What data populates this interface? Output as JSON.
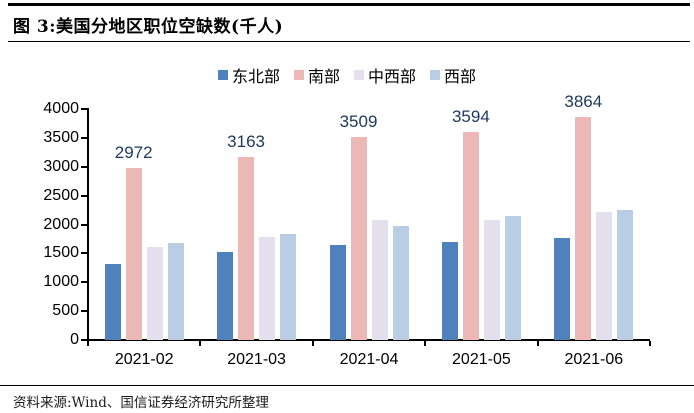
{
  "header": {
    "title": "图 3:美国分地区职位空缺数(千人)"
  },
  "footer": {
    "source": "资料来源:Wind、国信证券经济研究所整理"
  },
  "chart_data": {
    "type": "bar",
    "title": "美国分地区职位空缺数(千人)",
    "categories": [
      "2021-02",
      "2021-03",
      "2021-04",
      "2021-05",
      "2021-06"
    ],
    "series": [
      {
        "name": "东北部",
        "color": "#4F81BD",
        "show_labels": false,
        "values": [
          1310,
          1530,
          1650,
          1690,
          1760
        ]
      },
      {
        "name": "南部",
        "color": "#ECB8B6",
        "show_labels": true,
        "values": [
          2972,
          3163,
          3509,
          3594,
          3864
        ]
      },
      {
        "name": "中西部",
        "color": "#E4DFEC",
        "show_labels": false,
        "values": [
          1610,
          1790,
          2080,
          2070,
          2210
        ]
      },
      {
        "name": "西部",
        "color": "#B9CDE4",
        "show_labels": false,
        "values": [
          1680,
          1830,
          1980,
          2140,
          2250
        ]
      }
    ],
    "xlabel": "",
    "ylabel": "",
    "ylim": [
      0,
      4000
    ],
    "y_ticks": [
      0,
      500,
      1000,
      1500,
      2000,
      2500,
      3000,
      3500,
      4000
    ],
    "grid": false,
    "legend_position": "top",
    "data_label_color": "#1F3A60",
    "axis_color": "#000000"
  }
}
